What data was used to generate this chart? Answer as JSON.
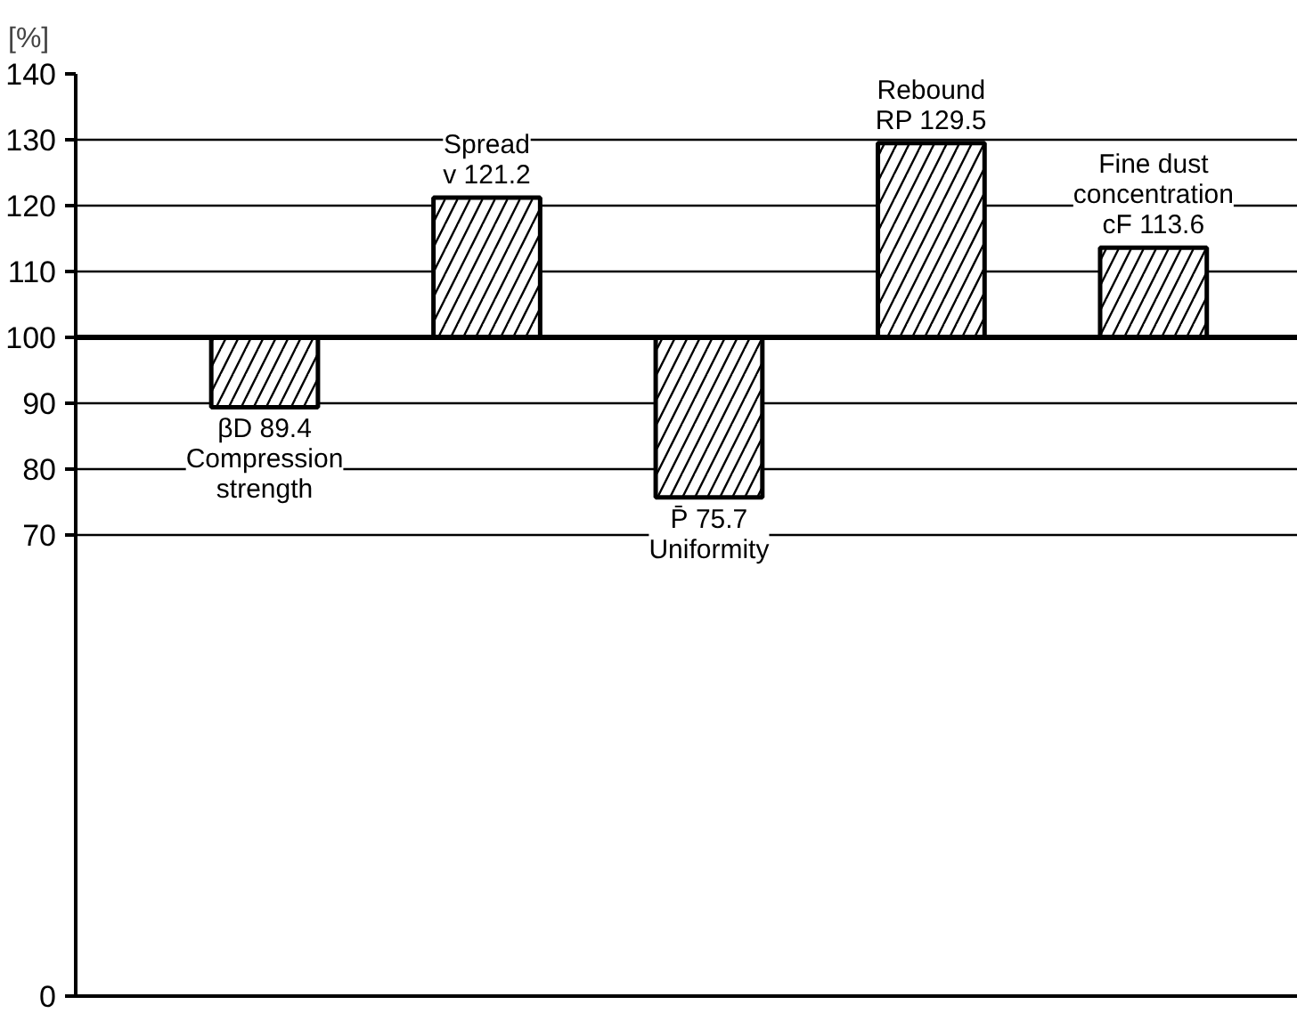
{
  "chart_data": {
    "type": "bar",
    "ylabel": "[%]",
    "categories": [
      "Compression\nstrength",
      "Spread",
      "Uniformity",
      "Rebound",
      "Fine dust\nconcentration"
    ],
    "base": [
      100,
      100,
      100,
      100,
      100
    ],
    "values": [
      -10.6,
      21.2,
      -24.3,
      29.5,
      13.6
    ],
    "value_labels": [
      "βD 89.4",
      "v 121.2",
      "P̄ 75.7",
      "RP 129.5",
      "cF 113.6"
    ],
    "color": "#000000",
    "ylim": [
      0,
      140
    ],
    "yticks": [
      0,
      70,
      80,
      90,
      100,
      110,
      120,
      130,
      140
    ],
    "grid": "y",
    "tick_labels": "y",
    "ref_lines": [
      {
        "axis": "y",
        "value": 100
      }
    ]
  }
}
